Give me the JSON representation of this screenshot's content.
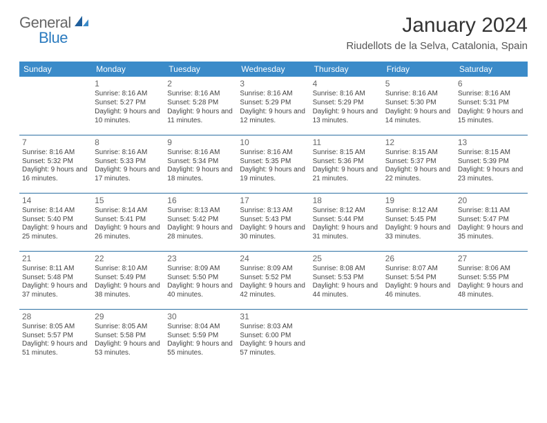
{
  "logo": {
    "general": "General",
    "blue": "Blue"
  },
  "title": "January 2024",
  "location": "Riudellots de la Selva, Catalonia, Spain",
  "dayHeaders": [
    "Sunday",
    "Monday",
    "Tuesday",
    "Wednesday",
    "Thursday",
    "Friday",
    "Saturday"
  ],
  "colors": {
    "headerBg": "#3b8bc9",
    "headerText": "#ffffff",
    "rowBorder": "#2b6fa3",
    "logoBlue": "#2b7bbf",
    "logoGray": "#666666"
  },
  "weeks": [
    [
      {
        "num": "",
        "lines": []
      },
      {
        "num": "1",
        "lines": [
          "Sunrise: 8:16 AM",
          "Sunset: 5:27 PM",
          "Daylight: 9 hours and 10 minutes."
        ]
      },
      {
        "num": "2",
        "lines": [
          "Sunrise: 8:16 AM",
          "Sunset: 5:28 PM",
          "Daylight: 9 hours and 11 minutes."
        ]
      },
      {
        "num": "3",
        "lines": [
          "Sunrise: 8:16 AM",
          "Sunset: 5:29 PM",
          "Daylight: 9 hours and 12 minutes."
        ]
      },
      {
        "num": "4",
        "lines": [
          "Sunrise: 8:16 AM",
          "Sunset: 5:29 PM",
          "Daylight: 9 hours and 13 minutes."
        ]
      },
      {
        "num": "5",
        "lines": [
          "Sunrise: 8:16 AM",
          "Sunset: 5:30 PM",
          "Daylight: 9 hours and 14 minutes."
        ]
      },
      {
        "num": "6",
        "lines": [
          "Sunrise: 8:16 AM",
          "Sunset: 5:31 PM",
          "Daylight: 9 hours and 15 minutes."
        ]
      }
    ],
    [
      {
        "num": "7",
        "lines": [
          "Sunrise: 8:16 AM",
          "Sunset: 5:32 PM",
          "Daylight: 9 hours and 16 minutes."
        ]
      },
      {
        "num": "8",
        "lines": [
          "Sunrise: 8:16 AM",
          "Sunset: 5:33 PM",
          "Daylight: 9 hours and 17 minutes."
        ]
      },
      {
        "num": "9",
        "lines": [
          "Sunrise: 8:16 AM",
          "Sunset: 5:34 PM",
          "Daylight: 9 hours and 18 minutes."
        ]
      },
      {
        "num": "10",
        "lines": [
          "Sunrise: 8:16 AM",
          "Sunset: 5:35 PM",
          "Daylight: 9 hours and 19 minutes."
        ]
      },
      {
        "num": "11",
        "lines": [
          "Sunrise: 8:15 AM",
          "Sunset: 5:36 PM",
          "Daylight: 9 hours and 21 minutes."
        ]
      },
      {
        "num": "12",
        "lines": [
          "Sunrise: 8:15 AM",
          "Sunset: 5:37 PM",
          "Daylight: 9 hours and 22 minutes."
        ]
      },
      {
        "num": "13",
        "lines": [
          "Sunrise: 8:15 AM",
          "Sunset: 5:39 PM",
          "Daylight: 9 hours and 23 minutes."
        ]
      }
    ],
    [
      {
        "num": "14",
        "lines": [
          "Sunrise: 8:14 AM",
          "Sunset: 5:40 PM",
          "Daylight: 9 hours and 25 minutes."
        ]
      },
      {
        "num": "15",
        "lines": [
          "Sunrise: 8:14 AM",
          "Sunset: 5:41 PM",
          "Daylight: 9 hours and 26 minutes."
        ]
      },
      {
        "num": "16",
        "lines": [
          "Sunrise: 8:13 AM",
          "Sunset: 5:42 PM",
          "Daylight: 9 hours and 28 minutes."
        ]
      },
      {
        "num": "17",
        "lines": [
          "Sunrise: 8:13 AM",
          "Sunset: 5:43 PM",
          "Daylight: 9 hours and 30 minutes."
        ]
      },
      {
        "num": "18",
        "lines": [
          "Sunrise: 8:12 AM",
          "Sunset: 5:44 PM",
          "Daylight: 9 hours and 31 minutes."
        ]
      },
      {
        "num": "19",
        "lines": [
          "Sunrise: 8:12 AM",
          "Sunset: 5:45 PM",
          "Daylight: 9 hours and 33 minutes."
        ]
      },
      {
        "num": "20",
        "lines": [
          "Sunrise: 8:11 AM",
          "Sunset: 5:47 PM",
          "Daylight: 9 hours and 35 minutes."
        ]
      }
    ],
    [
      {
        "num": "21",
        "lines": [
          "Sunrise: 8:11 AM",
          "Sunset: 5:48 PM",
          "Daylight: 9 hours and 37 minutes."
        ]
      },
      {
        "num": "22",
        "lines": [
          "Sunrise: 8:10 AM",
          "Sunset: 5:49 PM",
          "Daylight: 9 hours and 38 minutes."
        ]
      },
      {
        "num": "23",
        "lines": [
          "Sunrise: 8:09 AM",
          "Sunset: 5:50 PM",
          "Daylight: 9 hours and 40 minutes."
        ]
      },
      {
        "num": "24",
        "lines": [
          "Sunrise: 8:09 AM",
          "Sunset: 5:52 PM",
          "Daylight: 9 hours and 42 minutes."
        ]
      },
      {
        "num": "25",
        "lines": [
          "Sunrise: 8:08 AM",
          "Sunset: 5:53 PM",
          "Daylight: 9 hours and 44 minutes."
        ]
      },
      {
        "num": "26",
        "lines": [
          "Sunrise: 8:07 AM",
          "Sunset: 5:54 PM",
          "Daylight: 9 hours and 46 minutes."
        ]
      },
      {
        "num": "27",
        "lines": [
          "Sunrise: 8:06 AM",
          "Sunset: 5:55 PM",
          "Daylight: 9 hours and 48 minutes."
        ]
      }
    ],
    [
      {
        "num": "28",
        "lines": [
          "Sunrise: 8:05 AM",
          "Sunset: 5:57 PM",
          "Daylight: 9 hours and 51 minutes."
        ]
      },
      {
        "num": "29",
        "lines": [
          "Sunrise: 8:05 AM",
          "Sunset: 5:58 PM",
          "Daylight: 9 hours and 53 minutes."
        ]
      },
      {
        "num": "30",
        "lines": [
          "Sunrise: 8:04 AM",
          "Sunset: 5:59 PM",
          "Daylight: 9 hours and 55 minutes."
        ]
      },
      {
        "num": "31",
        "lines": [
          "Sunrise: 8:03 AM",
          "Sunset: 6:00 PM",
          "Daylight: 9 hours and 57 minutes."
        ]
      },
      {
        "num": "",
        "lines": []
      },
      {
        "num": "",
        "lines": []
      },
      {
        "num": "",
        "lines": []
      }
    ]
  ]
}
